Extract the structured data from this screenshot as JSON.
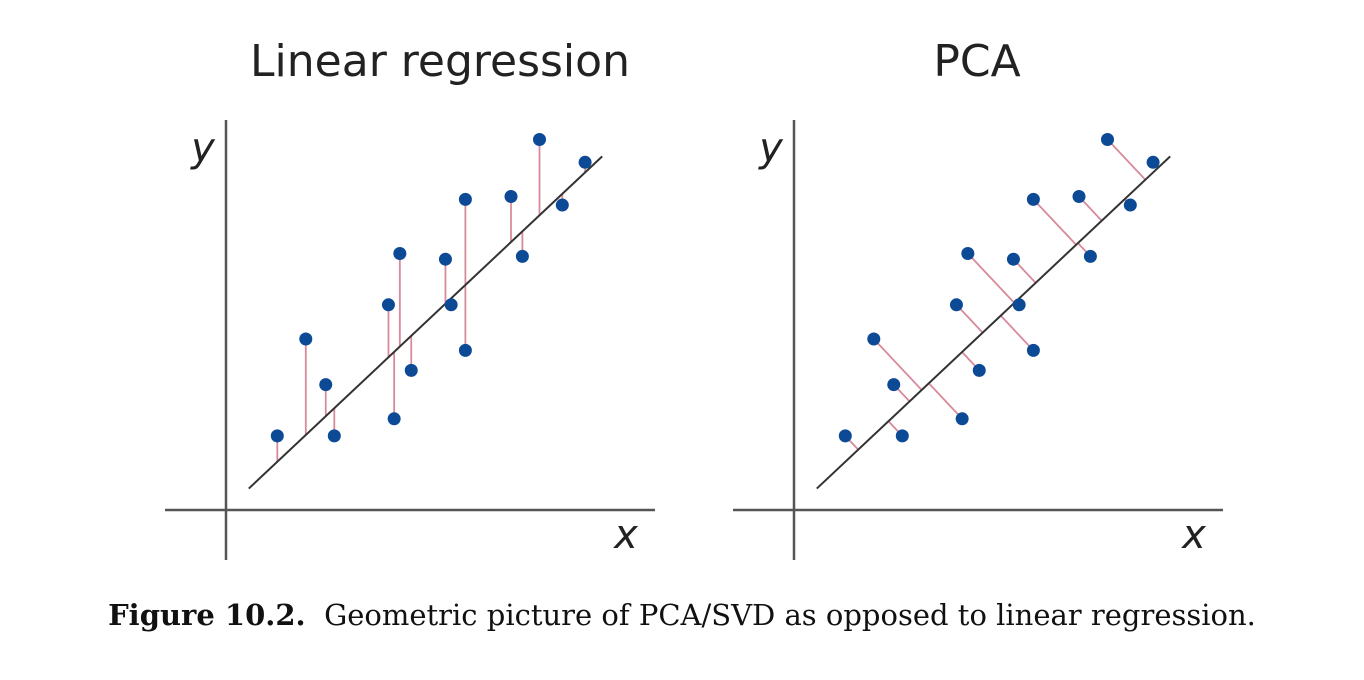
{
  "colors": {
    "point": "#0d4a96",
    "residual": "#d98a9a",
    "line": "#333333",
    "axis": "#555555"
  },
  "caption": {
    "label": "Figure 10.2.",
    "text": "Geometric picture of PCA/SVD as opposed to linear regression."
  },
  "chart_data": [
    {
      "type": "scatter",
      "title": "Linear regression",
      "xlabel": "x",
      "ylabel": "y",
      "xlim": [
        -1,
        7.6
      ],
      "ylim": [
        -0.5,
        6.8
      ],
      "fit_line": {
        "slope": 0.94,
        "intercept": 0.0,
        "x_range": [
          0.4,
          6.6
        ]
      },
      "residual_direction": "vertical",
      "points": [
        {
          "x": 0.9,
          "y": 1.3
        },
        {
          "x": 1.4,
          "y": 3.0
        },
        {
          "x": 1.75,
          "y": 2.2
        },
        {
          "x": 1.9,
          "y": 1.3
        },
        {
          "x": 2.85,
          "y": 3.6
        },
        {
          "x": 2.95,
          "y": 1.6
        },
        {
          "x": 3.05,
          "y": 4.5
        },
        {
          "x": 3.25,
          "y": 2.45
        },
        {
          "x": 3.85,
          "y": 4.4
        },
        {
          "x": 3.95,
          "y": 3.6
        },
        {
          "x": 4.2,
          "y": 2.8
        },
        {
          "x": 4.2,
          "y": 5.45
        },
        {
          "x": 5.0,
          "y": 5.5
        },
        {
          "x": 5.2,
          "y": 4.45
        },
        {
          "x": 5.5,
          "y": 6.5
        },
        {
          "x": 5.9,
          "y": 5.35
        },
        {
          "x": 6.3,
          "y": 6.1
        }
      ]
    },
    {
      "type": "scatter",
      "title": "PCA",
      "xlabel": "x",
      "ylabel": "y",
      "xlim": [
        -1,
        7.6
      ],
      "ylim": [
        -0.5,
        6.8
      ],
      "fit_line": {
        "slope": 0.94,
        "intercept": 0.0,
        "x_range": [
          0.4,
          6.6
        ]
      },
      "residual_direction": "perpendicular",
      "points": [
        {
          "x": 0.9,
          "y": 1.3
        },
        {
          "x": 1.4,
          "y": 3.0
        },
        {
          "x": 1.75,
          "y": 2.2
        },
        {
          "x": 1.9,
          "y": 1.3
        },
        {
          "x": 2.85,
          "y": 3.6
        },
        {
          "x": 2.95,
          "y": 1.6
        },
        {
          "x": 3.05,
          "y": 4.5
        },
        {
          "x": 3.25,
          "y": 2.45
        },
        {
          "x": 3.85,
          "y": 4.4
        },
        {
          "x": 3.95,
          "y": 3.6
        },
        {
          "x": 4.2,
          "y": 2.8
        },
        {
          "x": 4.2,
          "y": 5.45
        },
        {
          "x": 5.0,
          "y": 5.5
        },
        {
          "x": 5.2,
          "y": 4.45
        },
        {
          "x": 5.5,
          "y": 6.5
        },
        {
          "x": 5.9,
          "y": 5.35
        },
        {
          "x": 6.3,
          "y": 6.1
        }
      ]
    }
  ]
}
